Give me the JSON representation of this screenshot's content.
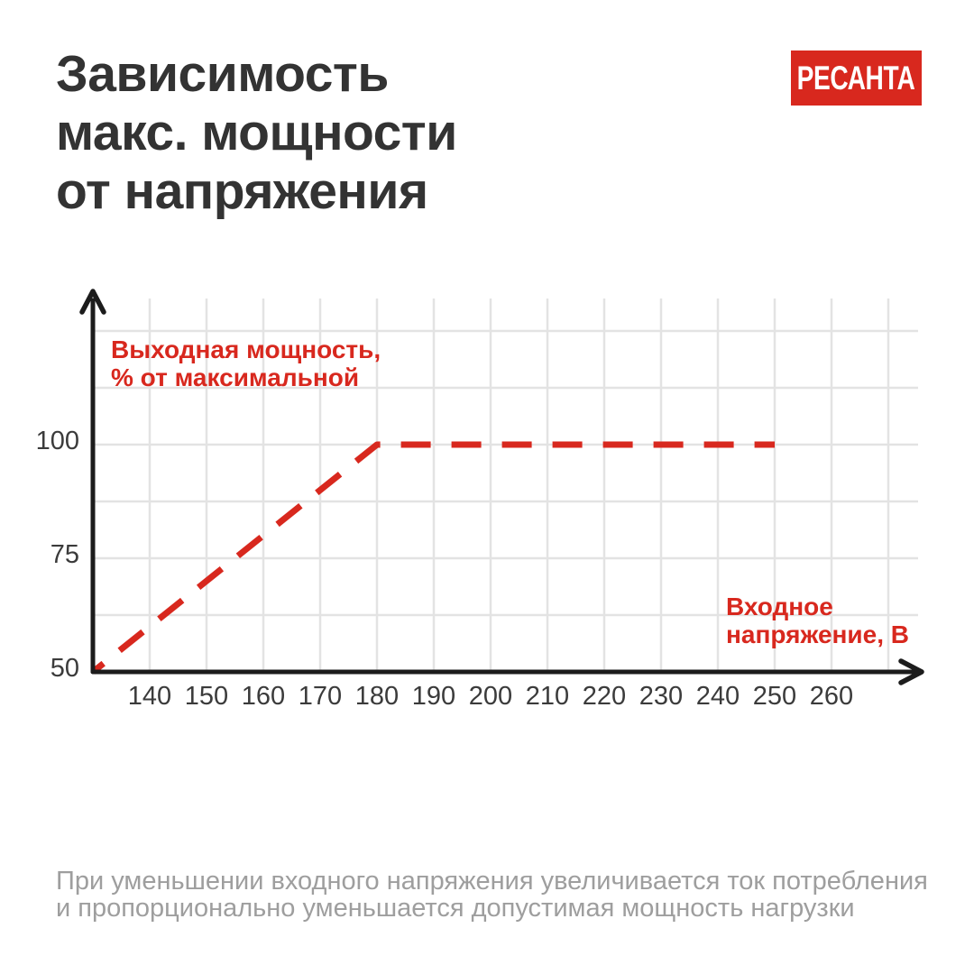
{
  "header": {
    "title_lines": [
      "Зависимость",
      "макс. мощности",
      "от напряжения"
    ],
    "logo_text": "РЕСАНТА",
    "logo_bg": "#d8281e",
    "logo_text_color": "#ffffff",
    "title_color": "#333333"
  },
  "chart_data": {
    "type": "line",
    "title": "Зависимость макс. мощности от напряжения",
    "xlabel": "Входное напряжение, В",
    "ylabel": "Выходная мощность, % от максимальной",
    "x_label_lines": [
      "Входное",
      "напряжение, В"
    ],
    "y_label_lines": [
      "Выходная мощность,",
      "% от максимальной"
    ],
    "x_ticks": [
      140,
      150,
      160,
      170,
      180,
      190,
      200,
      210,
      220,
      230,
      240,
      250,
      260
    ],
    "y_ticks": [
      50,
      75,
      100
    ],
    "x_gridlines": [
      140,
      150,
      160,
      170,
      180,
      190,
      200,
      210,
      220,
      230,
      240,
      250,
      260,
      270
    ],
    "y_gridlines": [
      62.5,
      75,
      87.5,
      100,
      112.5,
      125
    ],
    "xlim": [
      130,
      272
    ],
    "ylim": [
      50,
      132
    ],
    "grid": true,
    "legend": "none",
    "series": [
      {
        "name": "Выходная мощность, % от максимальной",
        "style": "dashed",
        "color": "#d8281e",
        "points": [
          [
            130,
            50
          ],
          [
            180,
            100
          ],
          [
            250,
            100
          ]
        ]
      }
    ],
    "colors": {
      "accent": "#d8281e",
      "grid": "#e3e3e3",
      "axis": "#1c1c1c",
      "tick_text": "#3b3b3b"
    }
  },
  "footer": {
    "lines": [
      "При уменьшении входного напряжения увеличивается ток потребления",
      "и пропорционально уменьшается допустимая мощность нагрузки"
    ],
    "text_color": "#9e9e9e"
  }
}
